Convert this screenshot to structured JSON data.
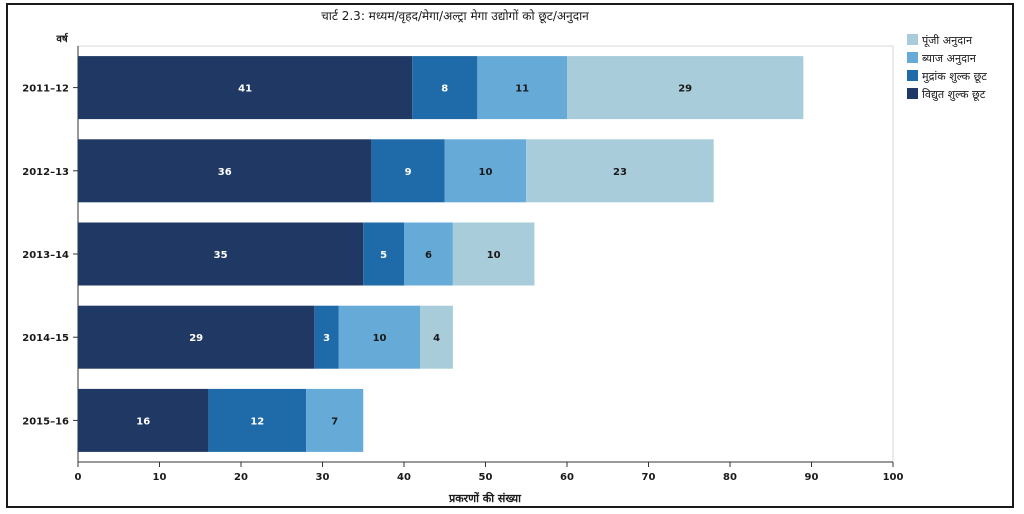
{
  "chart_data": {
    "type": "bar",
    "orientation": "horizontal",
    "stacked": true,
    "title": "चार्ट 2.3: मध्यम/वृहद/मेगा/अल्ट्रा मेगा उद्योगों को छूट/अनुदान",
    "ylabel": "वर्ष",
    "xlabel": "प्रकरणों की संख्या",
    "categories": [
      "2011–12",
      "2012–13",
      "2013–14",
      "2014–15",
      "2015–16"
    ],
    "xlim": [
      0,
      100
    ],
    "xticks": [
      0,
      10,
      20,
      30,
      40,
      50,
      60,
      70,
      80,
      90,
      100
    ],
    "grid": false,
    "legend_position": "right",
    "series": [
      {
        "name": "विद्युत शुल्क छूट",
        "color": "#203864",
        "label_color": "#ffffff",
        "values": [
          41,
          36,
          35,
          29,
          16
        ]
      },
      {
        "name": "मुद्रांक शुल्क छूट",
        "color": "#1f6aa8",
        "label_color": "#ffffff",
        "values": [
          8,
          9,
          5,
          3,
          12
        ]
      },
      {
        "name": "ब्याज अनुदान",
        "color": "#66aad8",
        "label_color": "#1a1a1a",
        "values": [
          11,
          10,
          6,
          10,
          7
        ]
      },
      {
        "name": "पूंजी अनुदान",
        "color": "#a9ccda",
        "label_color": "#1a1a1a",
        "values": [
          29,
          23,
          10,
          4,
          0
        ]
      }
    ],
    "legend_order": [
      3,
      2,
      1,
      0
    ]
  }
}
